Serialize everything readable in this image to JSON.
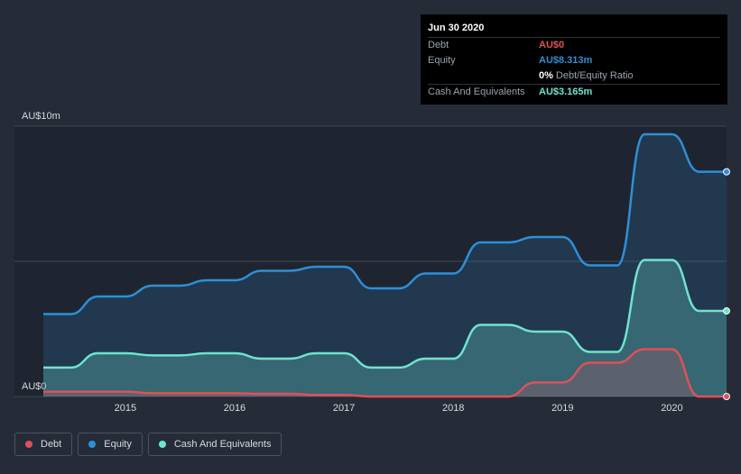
{
  "chart_data": {
    "type": "area",
    "title": "",
    "xlabel": "",
    "ylabel": "",
    "y_tick_labels": [
      "AU$0",
      "AU$10m"
    ],
    "ylim": [
      0,
      10
    ],
    "xlim": [
      2014.25,
      2020.5
    ],
    "x_ticks": [
      2015,
      2016,
      2017,
      2018,
      2019,
      2020
    ],
    "x_tick_labels": [
      "2015",
      "2016",
      "2017",
      "2018",
      "2019",
      "2020"
    ],
    "grid": true,
    "series": [
      {
        "name": "Equity",
        "color": "#2e8fd8",
        "x": [
          2014.25,
          2014.5,
          2014.75,
          2015.0,
          2015.25,
          2015.5,
          2015.75,
          2016.0,
          2016.25,
          2016.5,
          2016.75,
          2017.0,
          2017.25,
          2017.5,
          2017.75,
          2018.0,
          2018.25,
          2018.5,
          2018.75,
          2019.0,
          2019.25,
          2019.5,
          2019.75,
          2020.0,
          2020.25,
          2020.5
        ],
        "values": [
          3.05,
          3.05,
          3.7,
          3.7,
          4.1,
          4.1,
          4.3,
          4.3,
          4.65,
          4.65,
          4.8,
          4.8,
          4.0,
          4.0,
          4.55,
          4.55,
          5.7,
          5.7,
          5.9,
          5.9,
          4.85,
          4.85,
          9.7,
          9.7,
          8.313,
          8.313
        ]
      },
      {
        "name": "Cash And Equivalents",
        "color": "#6fe3cf",
        "x": [
          2014.25,
          2014.5,
          2014.75,
          2015.0,
          2015.25,
          2015.5,
          2015.75,
          2016.0,
          2016.25,
          2016.5,
          2016.75,
          2017.0,
          2017.25,
          2017.5,
          2017.75,
          2018.0,
          2018.25,
          2018.5,
          2018.75,
          2019.0,
          2019.25,
          2019.5,
          2019.75,
          2020.0,
          2020.25,
          2020.5
        ],
        "values": [
          1.07,
          1.07,
          1.6,
          1.6,
          1.52,
          1.52,
          1.6,
          1.6,
          1.4,
          1.4,
          1.6,
          1.6,
          1.07,
          1.07,
          1.4,
          1.4,
          2.65,
          2.65,
          2.4,
          2.4,
          1.65,
          1.65,
          5.05,
          5.05,
          3.165,
          3.165
        ]
      },
      {
        "name": "Debt",
        "color": "#e0505a",
        "x": [
          2014.25,
          2014.5,
          2014.75,
          2015.0,
          2015.25,
          2015.5,
          2015.75,
          2016.0,
          2016.25,
          2016.5,
          2016.75,
          2017.0,
          2017.25,
          2017.5,
          2017.75,
          2018.0,
          2018.25,
          2018.5,
          2018.75,
          2019.0,
          2019.25,
          2019.5,
          2019.75,
          2020.0,
          2020.25,
          2020.5
        ],
        "values": [
          0.18,
          0.18,
          0.18,
          0.18,
          0.12,
          0.12,
          0.12,
          0.12,
          0.1,
          0.1,
          0.06,
          0.06,
          0.0,
          0.0,
          0.0,
          0.0,
          0.0,
          0.0,
          0.52,
          0.52,
          1.25,
          1.25,
          1.75,
          1.75,
          0.0,
          0.0
        ]
      }
    ]
  },
  "tooltip": {
    "date": "Jun 30 2020",
    "rows": [
      {
        "label": "Debt",
        "value": "AU$0",
        "color": "#e0505a"
      },
      {
        "label": "Equity",
        "value": "AU$8.313m",
        "color": "#2e8fd8"
      },
      {
        "label": "",
        "value": "0%",
        "sub": "Debt/Equity Ratio",
        "color": "#ffffff"
      },
      {
        "label": "Cash And Equivalents",
        "value": "AU$3.165m",
        "color": "#6fe3cf"
      }
    ]
  },
  "legend": [
    {
      "label": "Debt",
      "color": "#e0505a"
    },
    {
      "label": "Equity",
      "color": "#2e8fd8"
    },
    {
      "label": "Cash And Equivalents",
      "color": "#6fe3cf"
    }
  ]
}
